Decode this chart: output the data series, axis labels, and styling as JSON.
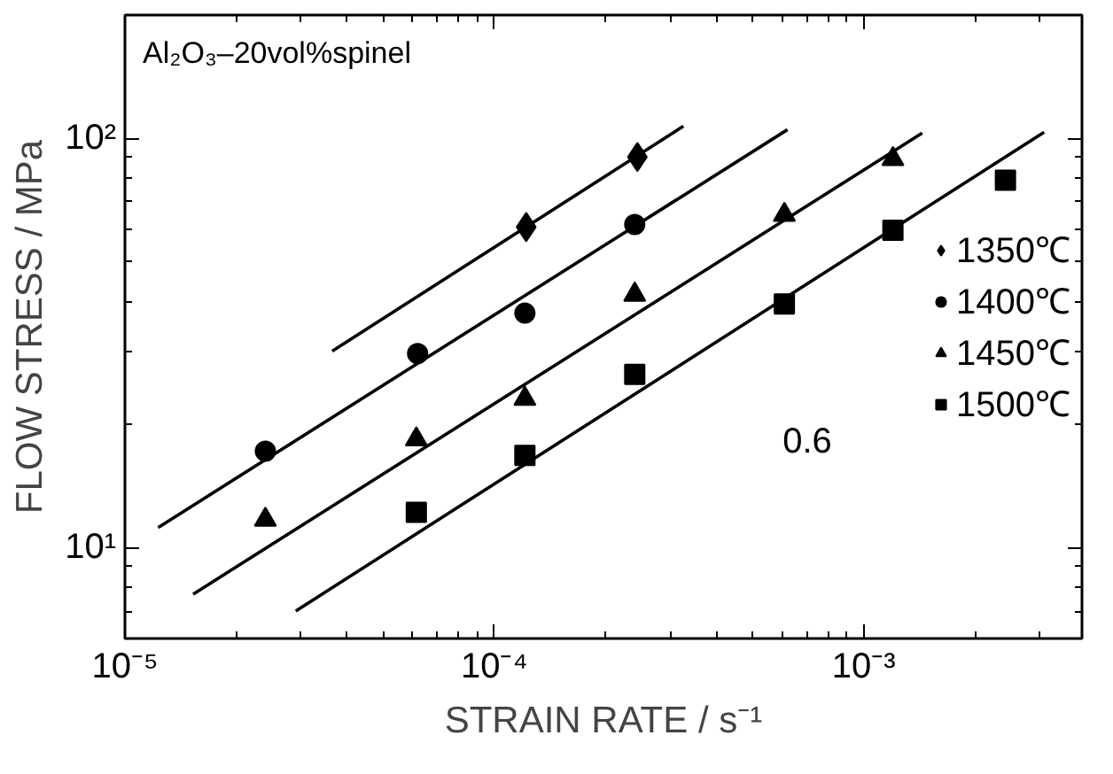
{
  "chart_data": {
    "type": "scatter",
    "title": "Al₂O₃–20vol%spinel",
    "xlabel": "STRAIN RATE / s⁻¹",
    "ylabel": "FLOW STRESS / MPa",
    "log": "xy",
    "grid": false,
    "legend": "right",
    "xlim": [
      1e-05,
      0.0039
    ],
    "ylim": [
      6,
      200
    ],
    "xticks": [
      {
        "value": 1e-05,
        "label": "10⁻⁵"
      },
      {
        "value": 0.0001,
        "label": "10⁻⁴"
      },
      {
        "value": 0.001,
        "label": "10⁻³"
      }
    ],
    "yticks": [
      {
        "value": 10,
        "label": "10¹"
      },
      {
        "value": 100,
        "label": "10²"
      }
    ],
    "annotations": [
      "0.6"
    ],
    "series": [
      {
        "name": "1350℃",
        "color": "#000000",
        "marker": "diamond",
        "x": [
          0.000122,
          0.000244
        ],
        "values": [
          60.7,
          90
        ]
      },
      {
        "name": "1400℃",
        "color": "#000000",
        "marker": "circle",
        "x": [
          2.4e-05,
          6.2e-05,
          0.000121,
          0.00024
        ],
        "values": [
          17.2,
          29.8,
          37.4,
          61.6
        ]
      },
      {
        "name": "1450℃",
        "color": "#000000",
        "marker": "triangle",
        "x": [
          2.4e-05,
          6.15e-05,
          0.000121,
          0.00024,
          0.00061,
          0.0012
        ],
        "values": [
          11.7,
          18.4,
          23.1,
          41.5,
          65,
          89
        ]
      },
      {
        "name": "1500℃",
        "color": "#000000",
        "marker": "square",
        "x": [
          6.15e-05,
          0.000121,
          0.00024,
          0.00061,
          0.0012,
          0.00242
        ],
        "values": [
          12.2,
          16.8,
          26.5,
          39.4,
          59.6,
          79
        ]
      },
      {
        "type": "line",
        "color": "#000000",
        "x": [
          3.64e-05,
          0.000325
        ],
        "values": [
          30.2,
          107
        ]
      },
      {
        "type": "line",
        "color": "#000000",
        "x": [
          1.23e-05,
          0.000622
        ],
        "values": [
          11.2,
          105
        ]
      },
      {
        "type": "line",
        "color": "#000000",
        "x": [
          1.53e-05,
          0.00144
        ],
        "values": [
          7.7,
          103
        ]
      },
      {
        "type": "line",
        "color": "#000000",
        "x": [
          2.9e-05,
          0.00308
        ],
        "values": [
          7.0,
          103.5
        ]
      }
    ]
  }
}
